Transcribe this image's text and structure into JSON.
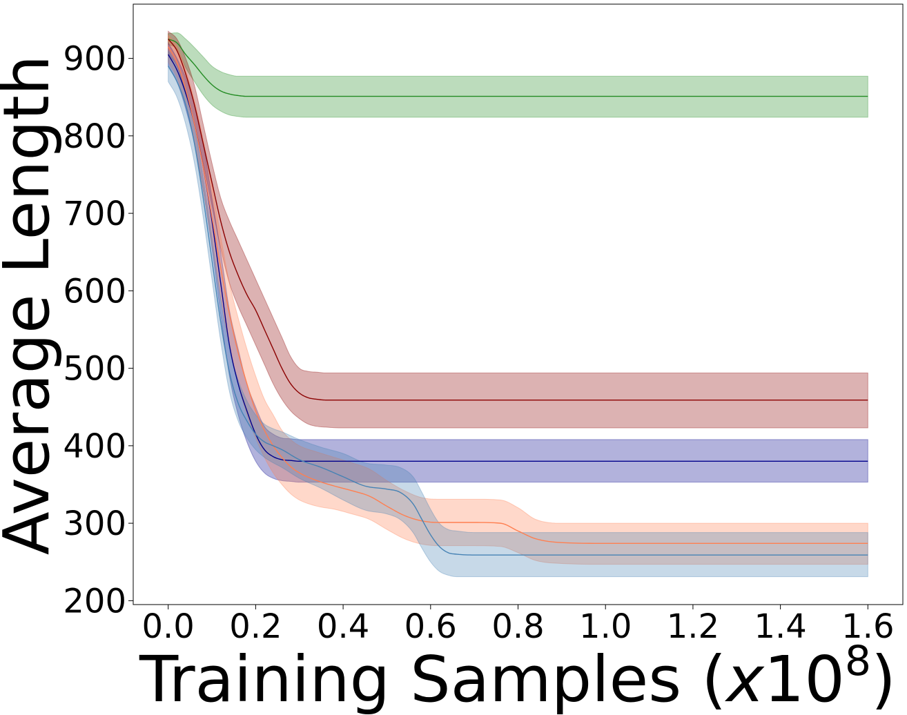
{
  "chart_data": {
    "type": "line",
    "xlabel": "Training Samples (",
    "xlabel_var": "x",
    "xlabel_base": "10",
    "xlabel_exp": "8",
    "xlabel_close": ")",
    "ylabel": "Average Length",
    "xlim": [
      -0.08,
      1.68
    ],
    "ylim": [
      195,
      970
    ],
    "x_ticks": [
      "0.0",
      "0.2",
      "0.4",
      "0.6",
      "0.8",
      "1.0",
      "1.2",
      "1.4",
      "1.6"
    ],
    "x_tick_values": [
      0.0,
      0.2,
      0.4,
      0.6,
      0.8,
      1.0,
      1.2,
      1.4,
      1.6
    ],
    "y_ticks": [
      "200",
      "300",
      "400",
      "500",
      "600",
      "700",
      "800",
      "900"
    ],
    "y_tick_values": [
      200,
      300,
      400,
      500,
      600,
      700,
      800,
      900
    ],
    "grid": false,
    "legend": "none",
    "series": [
      {
        "color": "#228b22",
        "x": [
          0.0,
          0.02,
          0.04,
          0.06,
          0.08,
          0.1,
          0.12,
          0.14,
          0.16,
          0.18,
          0.2,
          0.3,
          0.5,
          1.0,
          1.6
        ],
        "mean": [
          925,
          920,
          905,
          892,
          878,
          866,
          858,
          854,
          852,
          851,
          851,
          851,
          851,
          851,
          851
        ],
        "lower": [
          918,
          912,
          888,
          870,
          853,
          840,
          832,
          827,
          825,
          824,
          824,
          824,
          824,
          824,
          824
        ],
        "upper": [
          932,
          933,
          925,
          914,
          902,
          890,
          883,
          879,
          877,
          877,
          877,
          877,
          877,
          877,
          877
        ]
      },
      {
        "color": "#8b0000",
        "x": [
          0.0,
          0.02,
          0.04,
          0.06,
          0.08,
          0.1,
          0.12,
          0.14,
          0.16,
          0.18,
          0.2,
          0.22,
          0.24,
          0.26,
          0.28,
          0.3,
          0.32,
          0.34,
          0.36,
          0.4,
          0.6,
          1.0,
          1.6
        ],
        "mean": [
          925,
          910,
          880,
          840,
          790,
          740,
          690,
          650,
          620,
          595,
          575,
          550,
          525,
          500,
          480,
          468,
          462,
          460,
          459,
          459,
          459,
          459,
          459
        ],
        "lower": [
          905,
          890,
          855,
          815,
          765,
          710,
          655,
          610,
          580,
          555,
          530,
          505,
          480,
          460,
          445,
          435,
          428,
          425,
          424,
          423,
          423,
          423,
          423
        ],
        "upper": [
          935,
          925,
          900,
          865,
          815,
          765,
          720,
          690,
          665,
          640,
          615,
          590,
          565,
          540,
          515,
          500,
          496,
          495,
          494,
          494,
          494,
          494,
          494
        ]
      },
      {
        "color": "#00008b",
        "x": [
          0.0,
          0.02,
          0.04,
          0.06,
          0.08,
          0.1,
          0.12,
          0.14,
          0.16,
          0.18,
          0.2,
          0.22,
          0.24,
          0.26,
          0.28,
          0.3,
          0.4,
          0.6,
          1.0,
          1.6
        ],
        "mean": [
          905,
          885,
          855,
          815,
          760,
          690,
          610,
          530,
          480,
          445,
          415,
          395,
          386,
          382,
          381,
          380,
          380,
          380,
          380,
          380
        ],
        "lower": [
          890,
          870,
          835,
          790,
          730,
          655,
          570,
          490,
          440,
          405,
          380,
          365,
          358,
          355,
          354,
          353,
          353,
          353,
          353,
          353
        ],
        "upper": [
          920,
          900,
          875,
          840,
          790,
          720,
          650,
          575,
          525,
          480,
          450,
          425,
          415,
          410,
          409,
          408,
          408,
          408,
          408,
          408
        ]
      },
      {
        "color": "#ff7f50",
        "x": [
          0.0,
          0.02,
          0.04,
          0.06,
          0.08,
          0.1,
          0.12,
          0.14,
          0.16,
          0.18,
          0.2,
          0.22,
          0.24,
          0.26,
          0.28,
          0.3,
          0.34,
          0.38,
          0.42,
          0.46,
          0.5,
          0.54,
          0.58,
          0.62,
          0.7,
          0.76,
          0.8,
          0.84,
          0.9,
          1.0,
          1.6
        ],
        "mean": [
          915,
          895,
          860,
          815,
          760,
          695,
          630,
          570,
          520,
          480,
          445,
          420,
          400,
          385,
          373,
          365,
          355,
          348,
          342,
          335,
          322,
          310,
          303,
          301,
          301,
          300,
          290,
          280,
          275,
          274,
          274
        ],
        "lower": [
          895,
          875,
          840,
          790,
          730,
          660,
          590,
          530,
          480,
          440,
          410,
          385,
          365,
          350,
          338,
          330,
          322,
          318,
          312,
          305,
          292,
          280,
          273,
          271,
          271,
          270,
          262,
          252,
          248,
          247,
          247
        ],
        "upper": [
          930,
          915,
          885,
          845,
          795,
          735,
          670,
          610,
          565,
          525,
          490,
          460,
          440,
          420,
          408,
          400,
          392,
          385,
          378,
          370,
          355,
          342,
          333,
          331,
          331,
          330,
          320,
          305,
          300,
          300,
          300
        ]
      },
      {
        "color": "#4682b4",
        "x": [
          0.0,
          0.02,
          0.04,
          0.06,
          0.08,
          0.1,
          0.12,
          0.14,
          0.16,
          0.18,
          0.2,
          0.22,
          0.24,
          0.26,
          0.3,
          0.35,
          0.4,
          0.45,
          0.5,
          0.53,
          0.56,
          0.58,
          0.6,
          0.62,
          0.64,
          0.66,
          0.7,
          0.8,
          1.0,
          1.6
        ],
        "mean": [
          890,
          870,
          840,
          790,
          720,
          640,
          560,
          495,
          455,
          432,
          415,
          405,
          400,
          395,
          382,
          372,
          360,
          348,
          344,
          340,
          325,
          305,
          285,
          270,
          262,
          260,
          259,
          259,
          259,
          259
        ],
        "lower": [
          870,
          850,
          815,
          765,
          695,
          615,
          535,
          470,
          432,
          410,
          395,
          385,
          378,
          372,
          358,
          345,
          330,
          317,
          312,
          305,
          288,
          268,
          250,
          238,
          233,
          231,
          231,
          231,
          231,
          231
        ],
        "upper": [
          910,
          890,
          862,
          815,
          745,
          668,
          590,
          525,
          485,
          458,
          440,
          428,
          422,
          418,
          408,
          398,
          390,
          378,
          375,
          372,
          360,
          340,
          318,
          300,
          292,
          290,
          288,
          288,
          288,
          288
        ]
      }
    ]
  }
}
